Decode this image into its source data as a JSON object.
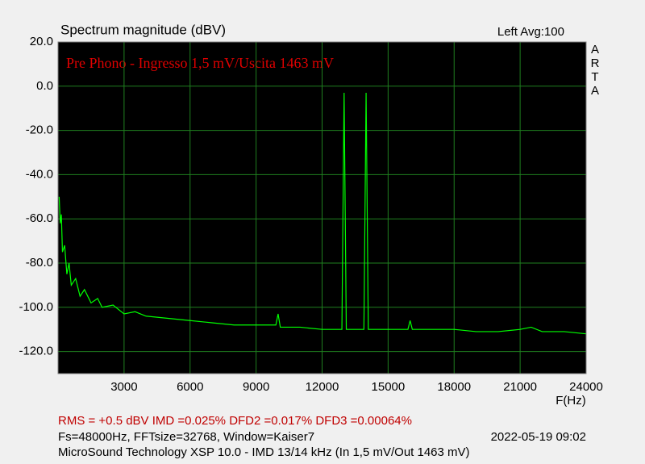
{
  "chart_data": {
    "type": "line",
    "title": "Spectrum magnitude (dBV)",
    "subtitle": "Left  Avg:100",
    "side_label": "ARTA",
    "annotation": "Pre Phono - Ingresso 1,5 mV/Uscita 1463 mV",
    "x_label": "F(Hz)",
    "footer": {
      "measurements": "RMS =   +0.5 dBV  IMD =0.025%  DFD2 =0.017%  DFD3 =0.00064%",
      "settings": "Fs=48000Hz, FFTsize=32768, Window=Kaiser7",
      "timestamp": "2022-05-19  09:02",
      "description": "MicroSound Technology XSP 10.0 - IMD 13/14 kHz (In 1,5 mV/Out 1463 mV)"
    },
    "xlim": [
      0,
      24000
    ],
    "ylim": [
      -130,
      20
    ],
    "xticks": [
      3000,
      6000,
      9000,
      12000,
      15000,
      18000,
      21000,
      24000
    ],
    "yticks": [
      {
        "value": 20,
        "label": "20.0"
      },
      {
        "value": 0,
        "label": "0.0"
      },
      {
        "value": -20,
        "label": "-20.0"
      },
      {
        "value": -40,
        "label": "-40.0"
      },
      {
        "value": -60,
        "label": "-60.0"
      },
      {
        "value": -80,
        "label": "-80.0"
      },
      {
        "value": -100,
        "label": "-100.0"
      },
      {
        "value": -120,
        "label": "-120.0"
      }
    ],
    "grid": true,
    "x": [
      50,
      100,
      150,
      200,
      300,
      400,
      500,
      600,
      800,
      1000,
      1200,
      1500,
      1800,
      2000,
      2500,
      3000,
      3500,
      4000,
      5000,
      6000,
      7000,
      8000,
      9000,
      9900,
      10000,
      10100,
      11000,
      12000,
      12900,
      13000,
      13100,
      13500,
      13900,
      14000,
      14100,
      15000,
      15900,
      16000,
      16100,
      17000,
      18000,
      19000,
      20000,
      21000,
      21500,
      22000,
      23000,
      24000
    ],
    "series": [
      {
        "color": "#00ff00",
        "values": [
          -50,
          -62,
          -58,
          -75,
          -72,
          -85,
          -80,
          -90,
          -87,
          -95,
          -92,
          -98,
          -96,
          -100,
          -99,
          -103,
          -102,
          -104,
          -105,
          -106,
          -107,
          -108,
          -108,
          -108,
          -103,
          -109,
          -109,
          -110,
          -110,
          -3,
          -110,
          -110,
          -110,
          -3,
          -110,
          -110,
          -110,
          -106,
          -110,
          -110,
          -110,
          -111,
          -111,
          -110,
          -109,
          -111,
          -111,
          -112
        ]
      }
    ]
  }
}
